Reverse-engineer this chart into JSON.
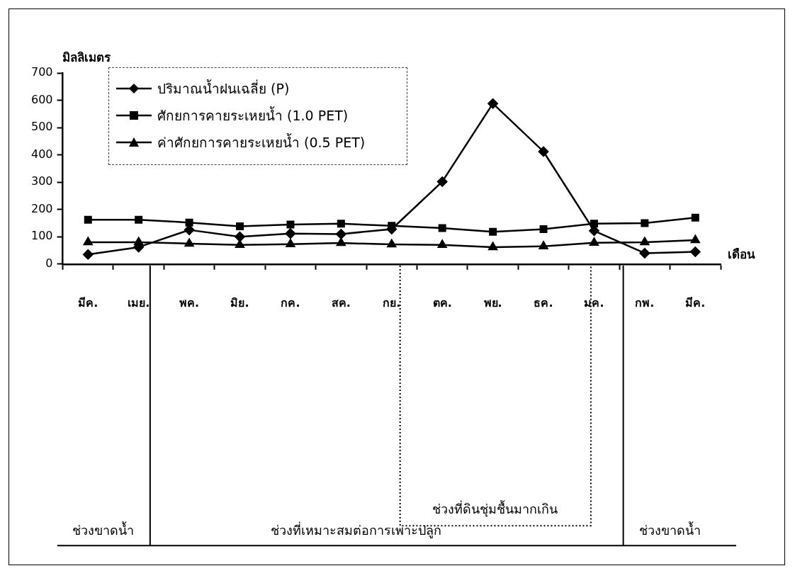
{
  "chart_data": {
    "type": "line",
    "ylabel": "มิลลิเมตร",
    "xlabel": "เดือน",
    "categories": [
      "มีค.",
      "เมย.",
      "พค.",
      "มิย.",
      "กค.",
      "สค.",
      "กย.",
      "ตค.",
      "พย.",
      "ธค.",
      "มค.",
      "กพ.",
      "มีค."
    ],
    "series": [
      {
        "name": "ปริมาณน้ำฝนเฉลี่ย (P)",
        "color": "#000000",
        "marker": "diamond",
        "values": [
          35,
          62,
          125,
          100,
          112,
          110,
          128,
          302,
          588,
          412,
          122,
          40,
          45
        ]
      },
      {
        "name": "ศักยการคายระเหยน้ำ (1.0 PET)",
        "color": "#000000",
        "marker": "square",
        "values": [
          162,
          162,
          152,
          138,
          145,
          148,
          140,
          132,
          118,
          128,
          148,
          150,
          170
        ]
      },
      {
        "name": "ค่าศักยการคายระเหยน้ำ (0.5 PET)",
        "color": "#000000",
        "marker": "triangle",
        "values": [
          80,
          80,
          75,
          70,
          73,
          77,
          72,
          70,
          62,
          65,
          78,
          80,
          88
        ]
      }
    ],
    "ylim": [
      0,
      700
    ],
    "yticks": [
      0,
      100,
      200,
      300,
      400,
      500,
      600,
      700
    ],
    "grid": false,
    "legend": "top left",
    "line_style": "solid",
    "annotations": [
      "ช่วงขาดน้ำ",
      "ช่วงที่เหมาะสมต่อการเพาะปลูก",
      "ช่วงที่ดินชุ่มชื้นมากเกิน",
      "ช่วงขาดน้ำ"
    ]
  }
}
